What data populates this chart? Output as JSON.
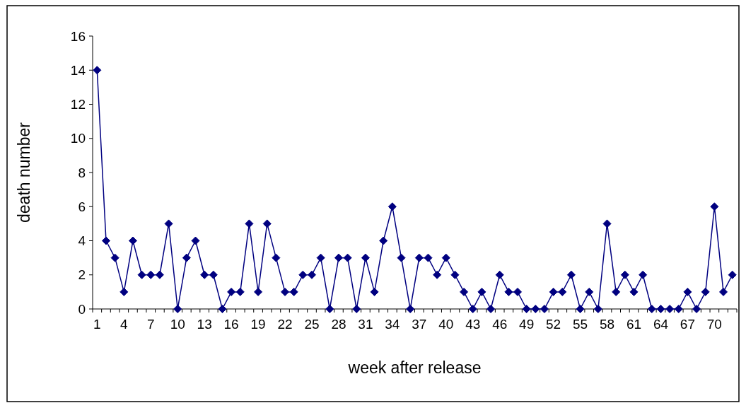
{
  "chart_data": {
    "type": "line",
    "xlabel": "week after release",
    "ylabel": "death number",
    "categories": [
      "1",
      null,
      null,
      "4",
      null,
      null,
      "7",
      null,
      null,
      "10",
      null,
      null,
      "13",
      null,
      null,
      "16",
      null,
      null,
      "19",
      null,
      null,
      "22",
      null,
      null,
      "25",
      null,
      null,
      "28",
      null,
      null,
      "31",
      null,
      null,
      "34",
      null,
      null,
      "37",
      null,
      null,
      "40",
      null,
      null,
      "43",
      null,
      null,
      "46",
      null,
      null,
      "49",
      null,
      null,
      "52",
      null,
      null,
      "55",
      null,
      null,
      "58",
      null,
      null,
      "61",
      null,
      null,
      "64",
      null,
      null,
      "67",
      null,
      null,
      "70",
      null,
      null
    ],
    "series": [
      {
        "color": "#000080",
        "values": [
          14,
          4,
          3,
          1,
          4,
          2,
          2,
          2,
          5,
          0,
          3,
          4,
          2,
          2,
          0,
          1,
          1,
          5,
          1,
          5,
          3,
          1,
          1,
          2,
          2,
          3,
          0,
          3,
          3,
          0,
          3,
          1,
          4,
          6,
          3,
          0,
          3,
          3,
          2,
          3,
          2,
          1,
          0,
          1,
          0,
          2,
          1,
          1,
          0,
          0,
          0,
          1,
          1,
          2,
          0,
          1,
          0,
          5,
          1,
          2,
          1,
          2,
          0,
          0,
          0,
          0,
          1,
          0,
          1,
          6,
          1,
          2
        ]
      }
    ],
    "ylim": [
      0,
      16
    ],
    "yticks": [
      0,
      2,
      4,
      6,
      8,
      10,
      12,
      14,
      16
    ],
    "marker": "diamond",
    "line_style": "solid"
  }
}
